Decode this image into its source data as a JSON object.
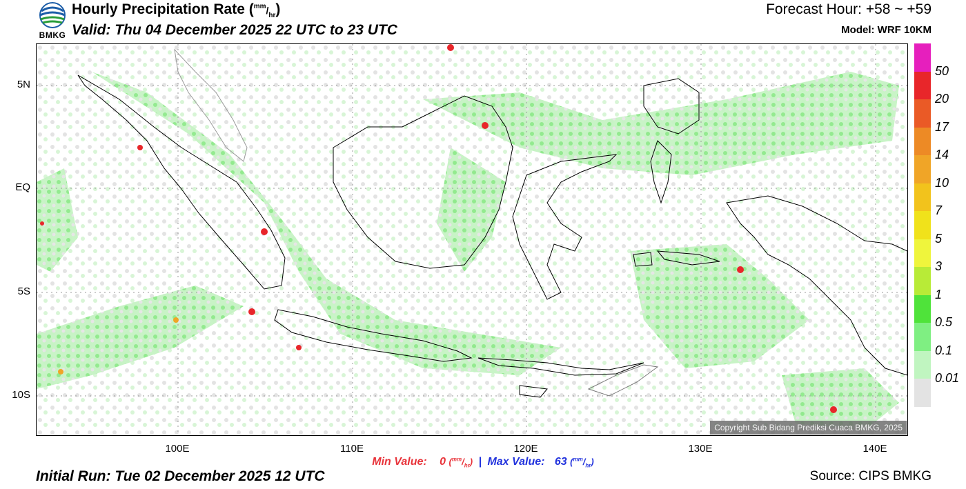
{
  "header": {
    "logo_text": "BMKG",
    "title_main": "Hourly Precipitation Rate (",
    "title_unit_num": "mm",
    "title_unit_den": "hr",
    "title_close": ")",
    "valid": "Valid: Thu 04 December 2025 22 UTC to 23 UTC",
    "forecast_hour": "Forecast Hour: +58 ~ +59",
    "model": "Model: WRF 10KM"
  },
  "map": {
    "lat_labels": [
      "5N",
      "EQ",
      "5S",
      "10S"
    ],
    "lon_labels": [
      "100E",
      "110E",
      "120E",
      "130E",
      "140E"
    ],
    "copyright": "Copyright Sub Bidang Prediksi Cuaca BMKG, 2025"
  },
  "legend": {
    "levels": [
      "50",
      "20",
      "17",
      "14",
      "10",
      "7",
      "5",
      "3",
      "1",
      "0.5",
      "0.1",
      "0.01"
    ],
    "colors": [
      "#e61fbd",
      "#e8262a",
      "#ea5a26",
      "#ed8a25",
      "#f0a527",
      "#f2c31c",
      "#f0e21b",
      "#eff53c",
      "#b8eb37",
      "#4fe33a",
      "#7fef82",
      "#c0f5c0",
      "#e3e3e3"
    ]
  },
  "stats": {
    "min_label": "Min Value:",
    "min_value": "0",
    "separator": "|",
    "max_label": "Max Value:",
    "max_value": "63",
    "unit_num": "mm",
    "unit_den": "hr"
  },
  "footer": {
    "initial_run": "Initial Run: Tue 02 December 2025 12 UTC",
    "source": "Source: CIPS BMKG"
  }
}
